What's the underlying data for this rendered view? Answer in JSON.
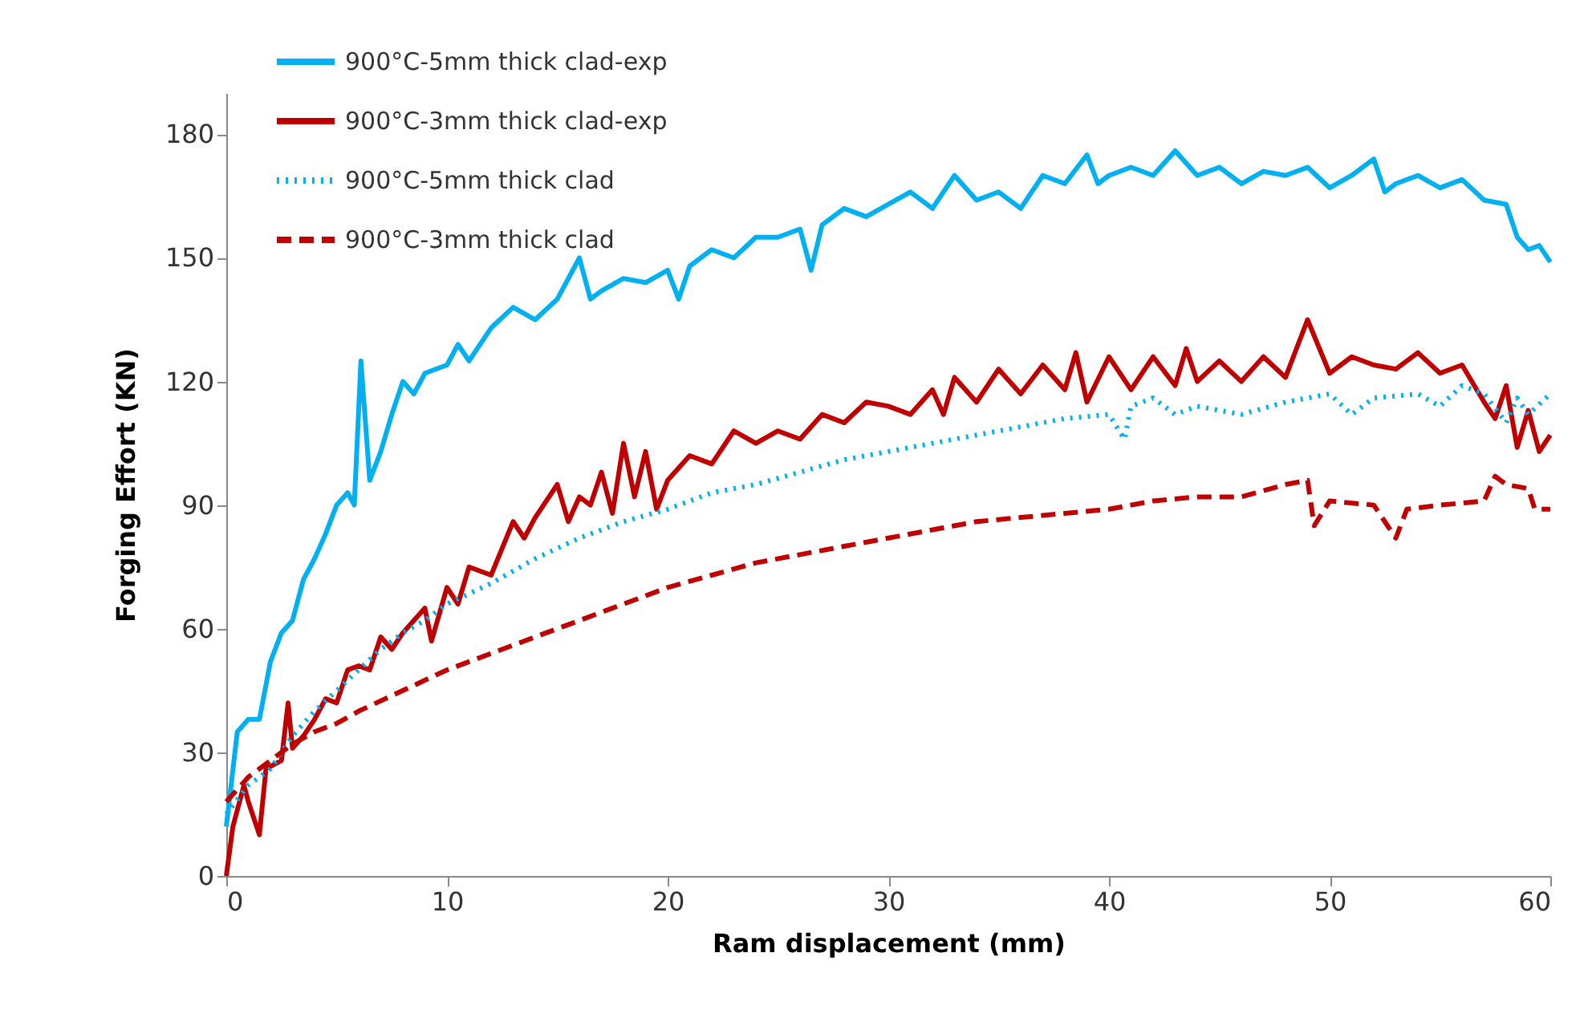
{
  "chart_data": {
    "type": "line",
    "xlabel": "Ram displacement (mm)",
    "ylabel": "Forging Effort (KN)",
    "xlim": [
      0,
      60
    ],
    "xticks": [
      0,
      10,
      20,
      30,
      40,
      50,
      60
    ],
    "ylim": [
      0,
      190
    ],
    "yticks": [
      0,
      30,
      60,
      90,
      120,
      150,
      180
    ],
    "grid": false,
    "legend": "top left",
    "marker": "none",
    "series": [
      {
        "name": "900°C-5mm thick clad-exp",
        "color": "#00b0f0",
        "line_style": "solid",
        "x": [
          0,
          0.5,
          1,
          1.5,
          2,
          2.5,
          3,
          3.5,
          4,
          4.5,
          5,
          5.5,
          5.8,
          6.1,
          6.5,
          7,
          7.5,
          8,
          8.5,
          9,
          10,
          10.5,
          11,
          12,
          13,
          14,
          15,
          16,
          16.5,
          17,
          18,
          19,
          20,
          20.5,
          21,
          22,
          23,
          24,
          25,
          26,
          26.5,
          27,
          28,
          29,
          30,
          31,
          32,
          33,
          34,
          35,
          36,
          37,
          38,
          39,
          39.5,
          40,
          41,
          42,
          43,
          44,
          45,
          46,
          47,
          48,
          49,
          50,
          51,
          52,
          52.5,
          53,
          54,
          55,
          56,
          57,
          58,
          58.5,
          59,
          59.5,
          60
        ],
        "values": [
          12,
          35,
          38,
          38,
          52,
          59,
          62,
          72,
          77,
          83,
          90,
          93,
          90,
          125,
          96,
          103,
          112,
          120,
          117,
          122,
          124,
          129,
          125,
          133,
          138,
          135,
          140,
          150,
          140,
          142,
          145,
          144,
          147,
          140,
          148,
          152,
          150,
          155,
          155,
          157,
          147,
          158,
          162,
          160,
          163,
          166,
          162,
          170,
          164,
          166,
          162,
          170,
          168,
          175,
          168,
          170,
          172,
          170,
          176,
          170,
          172,
          168,
          171,
          170,
          172,
          167,
          170,
          174,
          166,
          168,
          170,
          167,
          169,
          164,
          163,
          155,
          152,
          153,
          149
        ]
      },
      {
        "name": "900°C-3mm thick clad-exp",
        "color": "#c00000",
        "line_style": "solid",
        "x": [
          0,
          0.3,
          0.8,
          1,
          1.5,
          1.8,
          2.5,
          2.8,
          3,
          3.5,
          4,
          4.5,
          5,
          5.5,
          6,
          6.5,
          7,
          7.5,
          8,
          9,
          9.3,
          10,
          10.5,
          11,
          12,
          13,
          13.5,
          14,
          15,
          15.5,
          16,
          16.5,
          17,
          17.5,
          18,
          18.5,
          19,
          19.5,
          20,
          21,
          22,
          23,
          24,
          25,
          26,
          27,
          28,
          29,
          30,
          31,
          32,
          32.5,
          33,
          34,
          35,
          36,
          37,
          38,
          38.5,
          39,
          40,
          41,
          42,
          43,
          43.5,
          44,
          45,
          46,
          47,
          48,
          49,
          50,
          51,
          52,
          53,
          54,
          55,
          56,
          57,
          57.5,
          58,
          58.5,
          59,
          59.5,
          60
        ],
        "values": [
          0,
          12,
          22,
          18,
          10,
          26,
          28,
          42,
          31,
          34,
          38,
          43,
          42,
          50,
          51,
          50,
          58,
          55,
          59,
          65,
          57,
          70,
          66,
          75,
          73,
          86,
          82,
          87,
          95,
          86,
          92,
          90,
          98,
          88,
          105,
          92,
          103,
          89,
          96,
          102,
          100,
          108,
          105,
          108,
          106,
          112,
          110,
          115,
          114,
          112,
          118,
          112,
          121,
          115,
          123,
          117,
          124,
          118,
          127,
          115,
          126,
          118,
          126,
          119,
          128,
          120,
          125,
          120,
          126,
          121,
          135,
          122,
          126,
          124,
          123,
          127,
          122,
          124,
          115,
          111,
          119,
          104,
          113,
          103,
          107
        ]
      },
      {
        "name": "900°C-5mm thick clad",
        "color": "#00b0f0",
        "line_style": "dotted",
        "x": [
          0,
          1,
          2,
          3,
          4,
          5,
          6,
          7,
          8,
          9,
          10,
          12,
          14,
          16,
          18,
          20,
          22,
          24,
          26,
          28,
          30,
          32,
          34,
          36,
          38,
          40,
          40.7,
          41,
          42,
          43,
          44,
          46,
          48,
          50,
          51,
          52,
          54,
          55,
          56,
          57,
          58,
          58.5,
          59,
          60
        ],
        "values": [
          15,
          22,
          26,
          34,
          40,
          45,
          50,
          55,
          59,
          62,
          66,
          71,
          77,
          82,
          86,
          89,
          93,
          95,
          98,
          101,
          103,
          105,
          107,
          109,
          111,
          112,
          106,
          114,
          116,
          112,
          114,
          112,
          115,
          117,
          112,
          116,
          117,
          114,
          119,
          117,
          110,
          116,
          112,
          117
        ]
      },
      {
        "name": "900°C-3mm thick clad",
        "color": "#c00000",
        "line_style": "dashed",
        "x": [
          0,
          1,
          2,
          3,
          4,
          5,
          6,
          8,
          10,
          12,
          14,
          16,
          18,
          20,
          22,
          24,
          26,
          28,
          30,
          32,
          34,
          36,
          38,
          40,
          42,
          44,
          46,
          48,
          49,
          49.3,
          50,
          52,
          53,
          53.5,
          55,
          57,
          57.5,
          58,
          59,
          59.3,
          60
        ],
        "values": [
          18,
          24,
          28,
          32,
          35,
          37,
          40,
          45,
          50,
          54,
          58,
          62,
          66,
          70,
          73,
          76,
          78,
          80,
          82,
          84,
          86,
          87,
          88,
          89,
          91,
          92,
          92,
          95,
          96,
          85,
          91,
          90,
          82,
          89,
          90,
          91,
          97,
          95,
          94,
          89,
          89
        ]
      }
    ]
  }
}
